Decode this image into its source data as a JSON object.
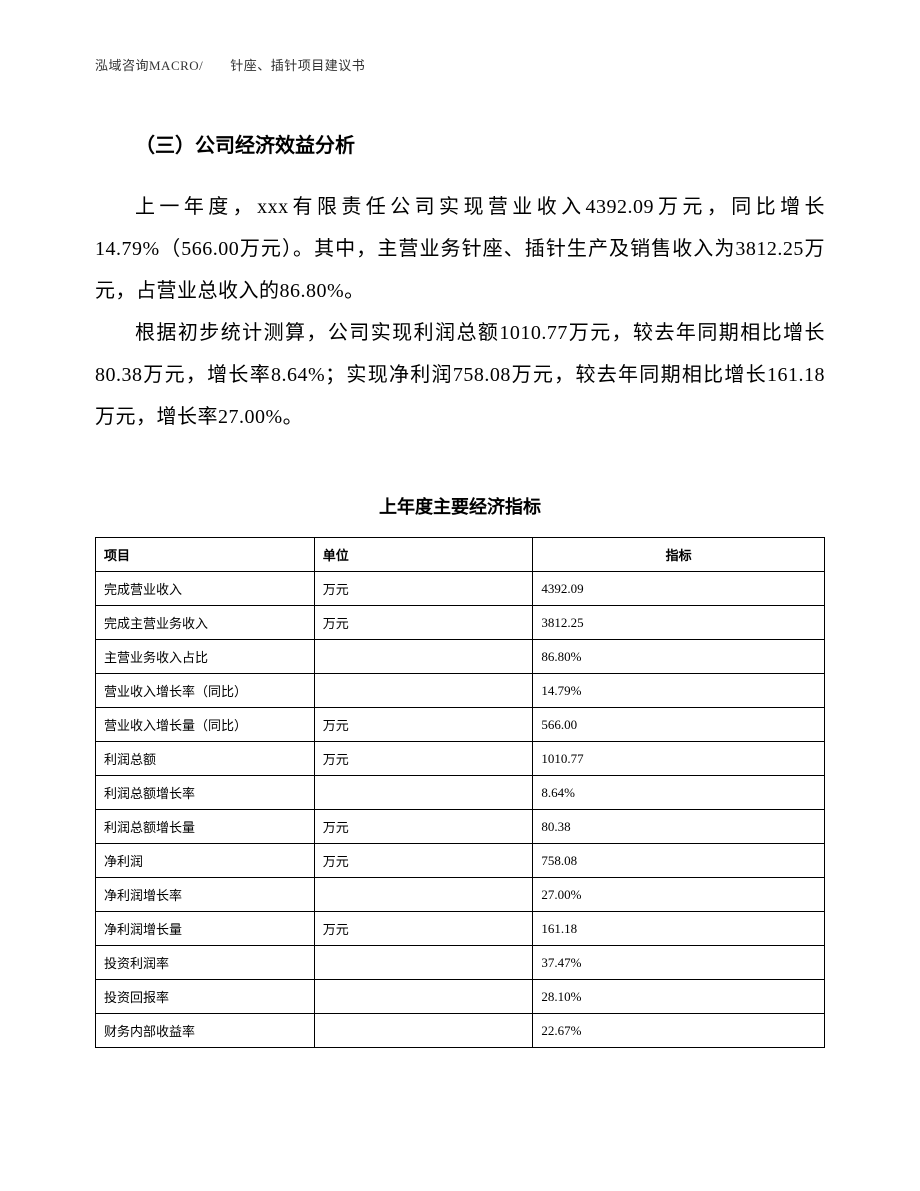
{
  "header": {
    "text": "泓域咨询MACRO/　　针座、插针项目建议书"
  },
  "section": {
    "title": "（三）公司经济效益分析",
    "paragraph1": "上一年度，xxx有限责任公司实现营业收入4392.09万元，同比增长14.79%（566.00万元）。其中，主营业务针座、插针生产及销售收入为3812.25万元，占营业总收入的86.80%。",
    "paragraph2": "根据初步统计测算，公司实现利润总额1010.77万元，较去年同期相比增长80.38万元，增长率8.64%；实现净利润758.08万元，较去年同期相比增长161.18万元，增长率27.00%。"
  },
  "table": {
    "title": "上年度主要经济指标",
    "columns": [
      "项目",
      "单位",
      "指标"
    ],
    "rows": [
      [
        "完成营业收入",
        "万元",
        "4392.09"
      ],
      [
        "完成主营业务收入",
        "万元",
        "3812.25"
      ],
      [
        "主营业务收入占比",
        "",
        "86.80%"
      ],
      [
        "营业收入增长率（同比）",
        "",
        "14.79%"
      ],
      [
        "营业收入增长量（同比）",
        "万元",
        "566.00"
      ],
      [
        "利润总额",
        "万元",
        "1010.77"
      ],
      [
        "利润总额增长率",
        "",
        "8.64%"
      ],
      [
        "利润总额增长量",
        "万元",
        "80.38"
      ],
      [
        "净利润",
        "万元",
        "758.08"
      ],
      [
        "净利润增长率",
        "",
        "27.00%"
      ],
      [
        "净利润增长量",
        "万元",
        "161.18"
      ],
      [
        "投资利润率",
        "",
        "37.47%"
      ],
      [
        "投资回报率",
        "",
        "28.10%"
      ],
      [
        "财务内部收益率",
        "",
        "22.67%"
      ]
    ]
  }
}
